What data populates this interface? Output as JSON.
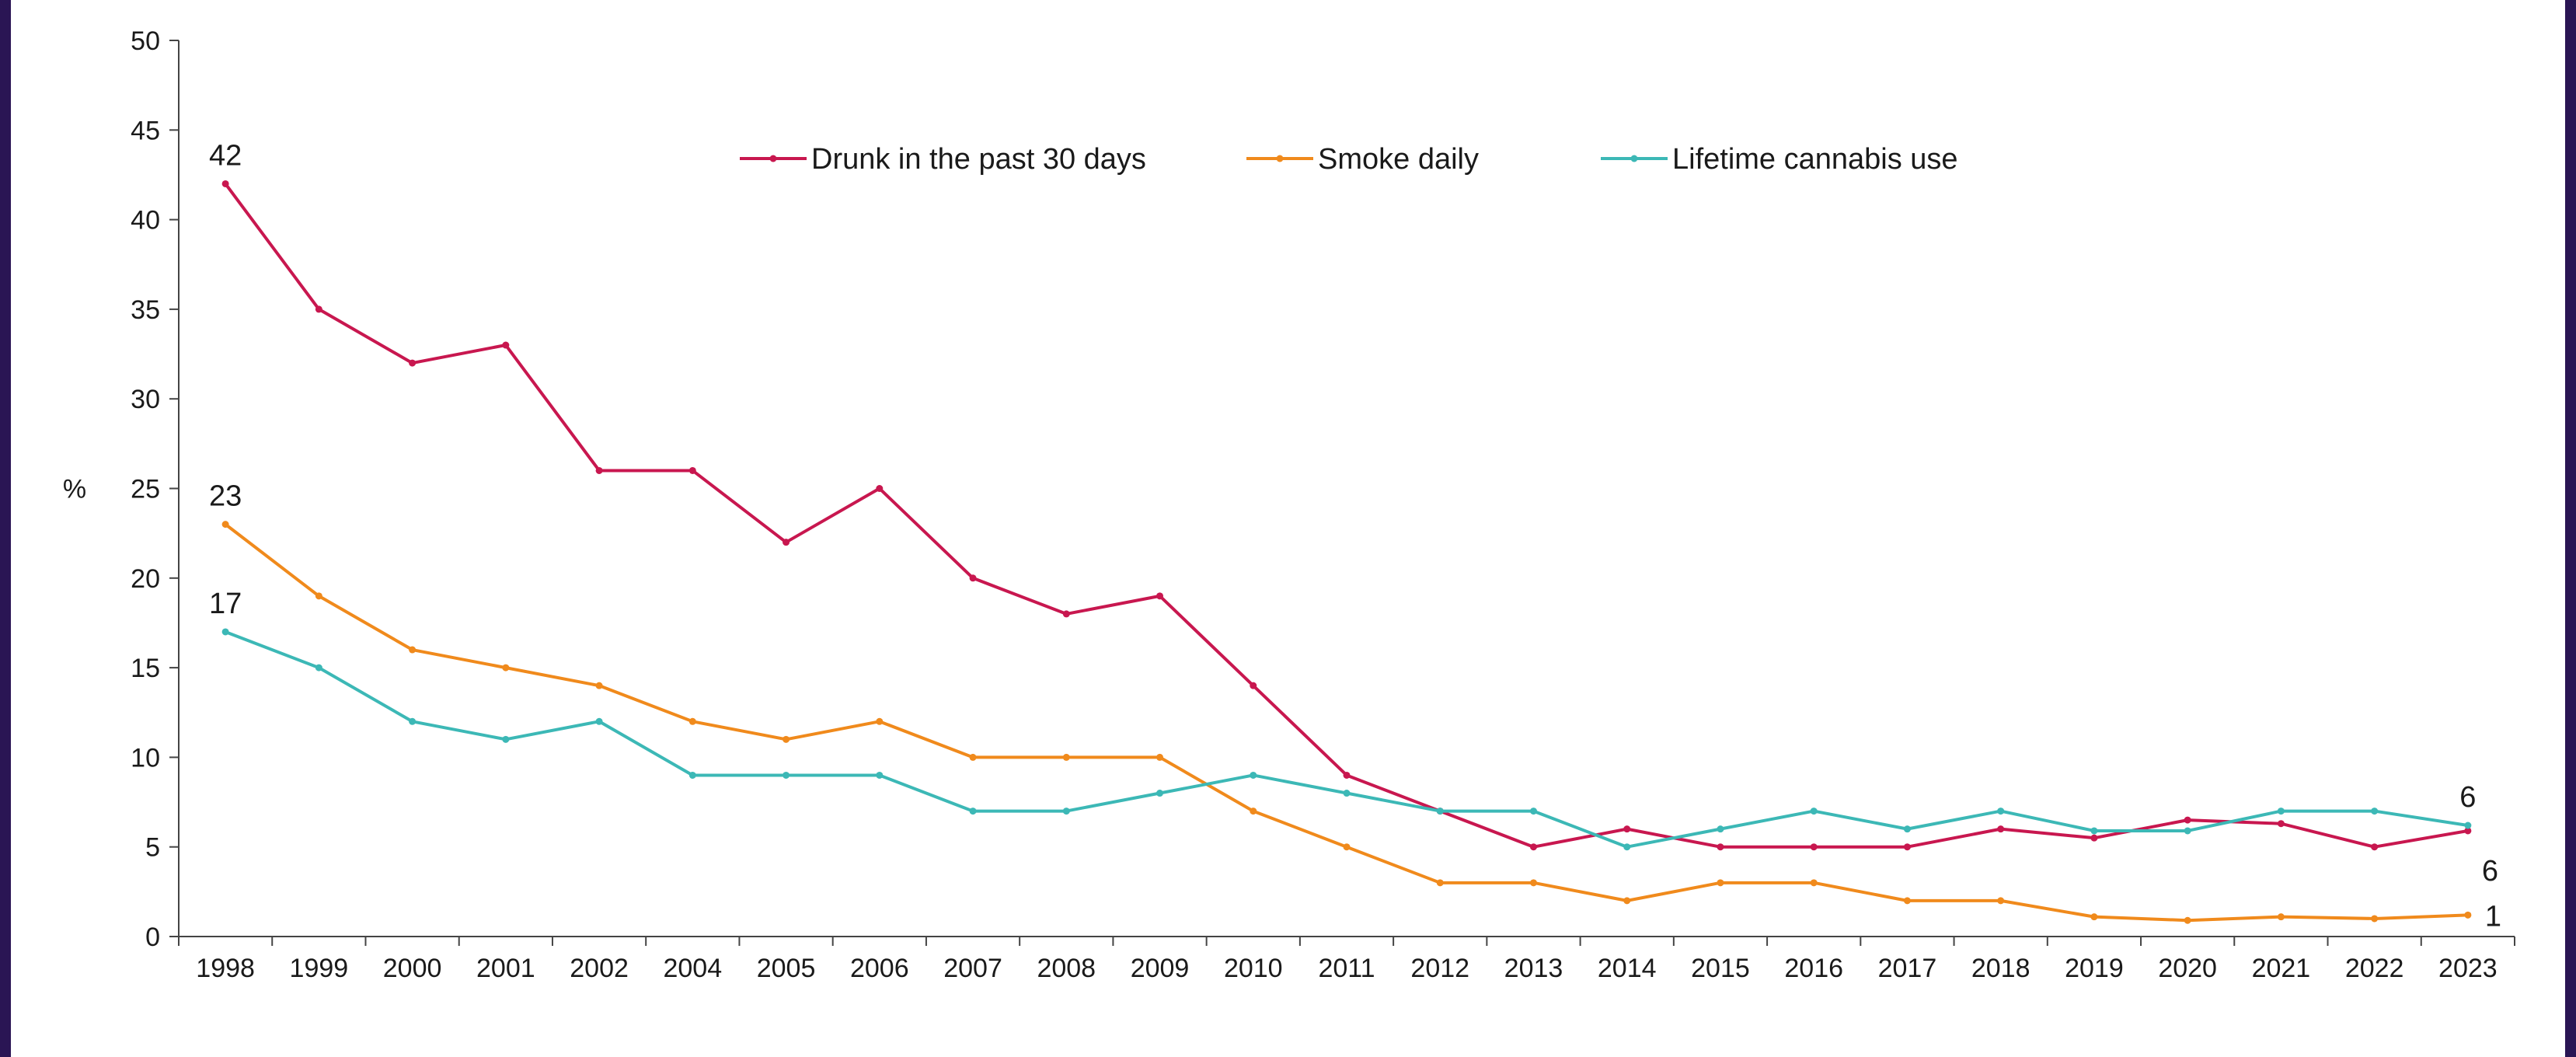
{
  "chart_data": {
    "type": "line",
    "title": "",
    "xlabel": "",
    "ylabel": "%",
    "ylim": [
      0,
      50
    ],
    "yticks": [
      0,
      5,
      10,
      15,
      20,
      25,
      30,
      35,
      40,
      45,
      50
    ],
    "categories": [
      "1998",
      "1999",
      "2000",
      "2001",
      "2002",
      "2004",
      "2005",
      "2006",
      "2007",
      "2008",
      "2009",
      "2010",
      "2011",
      "2012",
      "2013",
      "2014",
      "2015",
      "2016",
      "2017",
      "2018",
      "2019",
      "2020",
      "2021",
      "2022",
      "2023"
    ],
    "legend_position": "top-center",
    "grid": false,
    "series": [
      {
        "name": "Drunk in the past 30 days",
        "color": "#c8174f",
        "values": [
          42,
          35,
          32,
          33,
          26,
          26,
          22,
          25,
          20,
          18,
          19,
          14,
          9,
          7,
          5,
          6,
          5,
          5,
          5,
          6,
          5.5,
          6.5,
          6.3,
          5,
          5.9
        ]
      },
      {
        "name": "Smoke daily",
        "color": "#f08a1c",
        "values": [
          23,
          19,
          16,
          15,
          14,
          12,
          11,
          12,
          10,
          10,
          10,
          7,
          5,
          3,
          3,
          2,
          3,
          3,
          2,
          2,
          1.1,
          0.9,
          1.1,
          1,
          1.2
        ]
      },
      {
        "name": "Lifetime cannabis use",
        "color": "#3cb8b6",
        "values": [
          17,
          15,
          12,
          11,
          12,
          9,
          9,
          9,
          7,
          7,
          8,
          9,
          8,
          7,
          7,
          5,
          6,
          7,
          6,
          7,
          5.9,
          5.9,
          7,
          7,
          6.2
        ]
      }
    ],
    "annotations": [
      {
        "text": "42",
        "series": 0,
        "index": 0,
        "pos": "above"
      },
      {
        "text": "23",
        "series": 1,
        "index": 0,
        "pos": "above"
      },
      {
        "text": "17",
        "series": 2,
        "index": 0,
        "pos": "above"
      },
      {
        "text": "6",
        "series": 2,
        "index": 24,
        "pos": "above"
      },
      {
        "text": "6",
        "series": 0,
        "index": 24,
        "pos": "below-right"
      },
      {
        "text": "1",
        "series": 1,
        "index": 24,
        "pos": "right"
      }
    ]
  }
}
